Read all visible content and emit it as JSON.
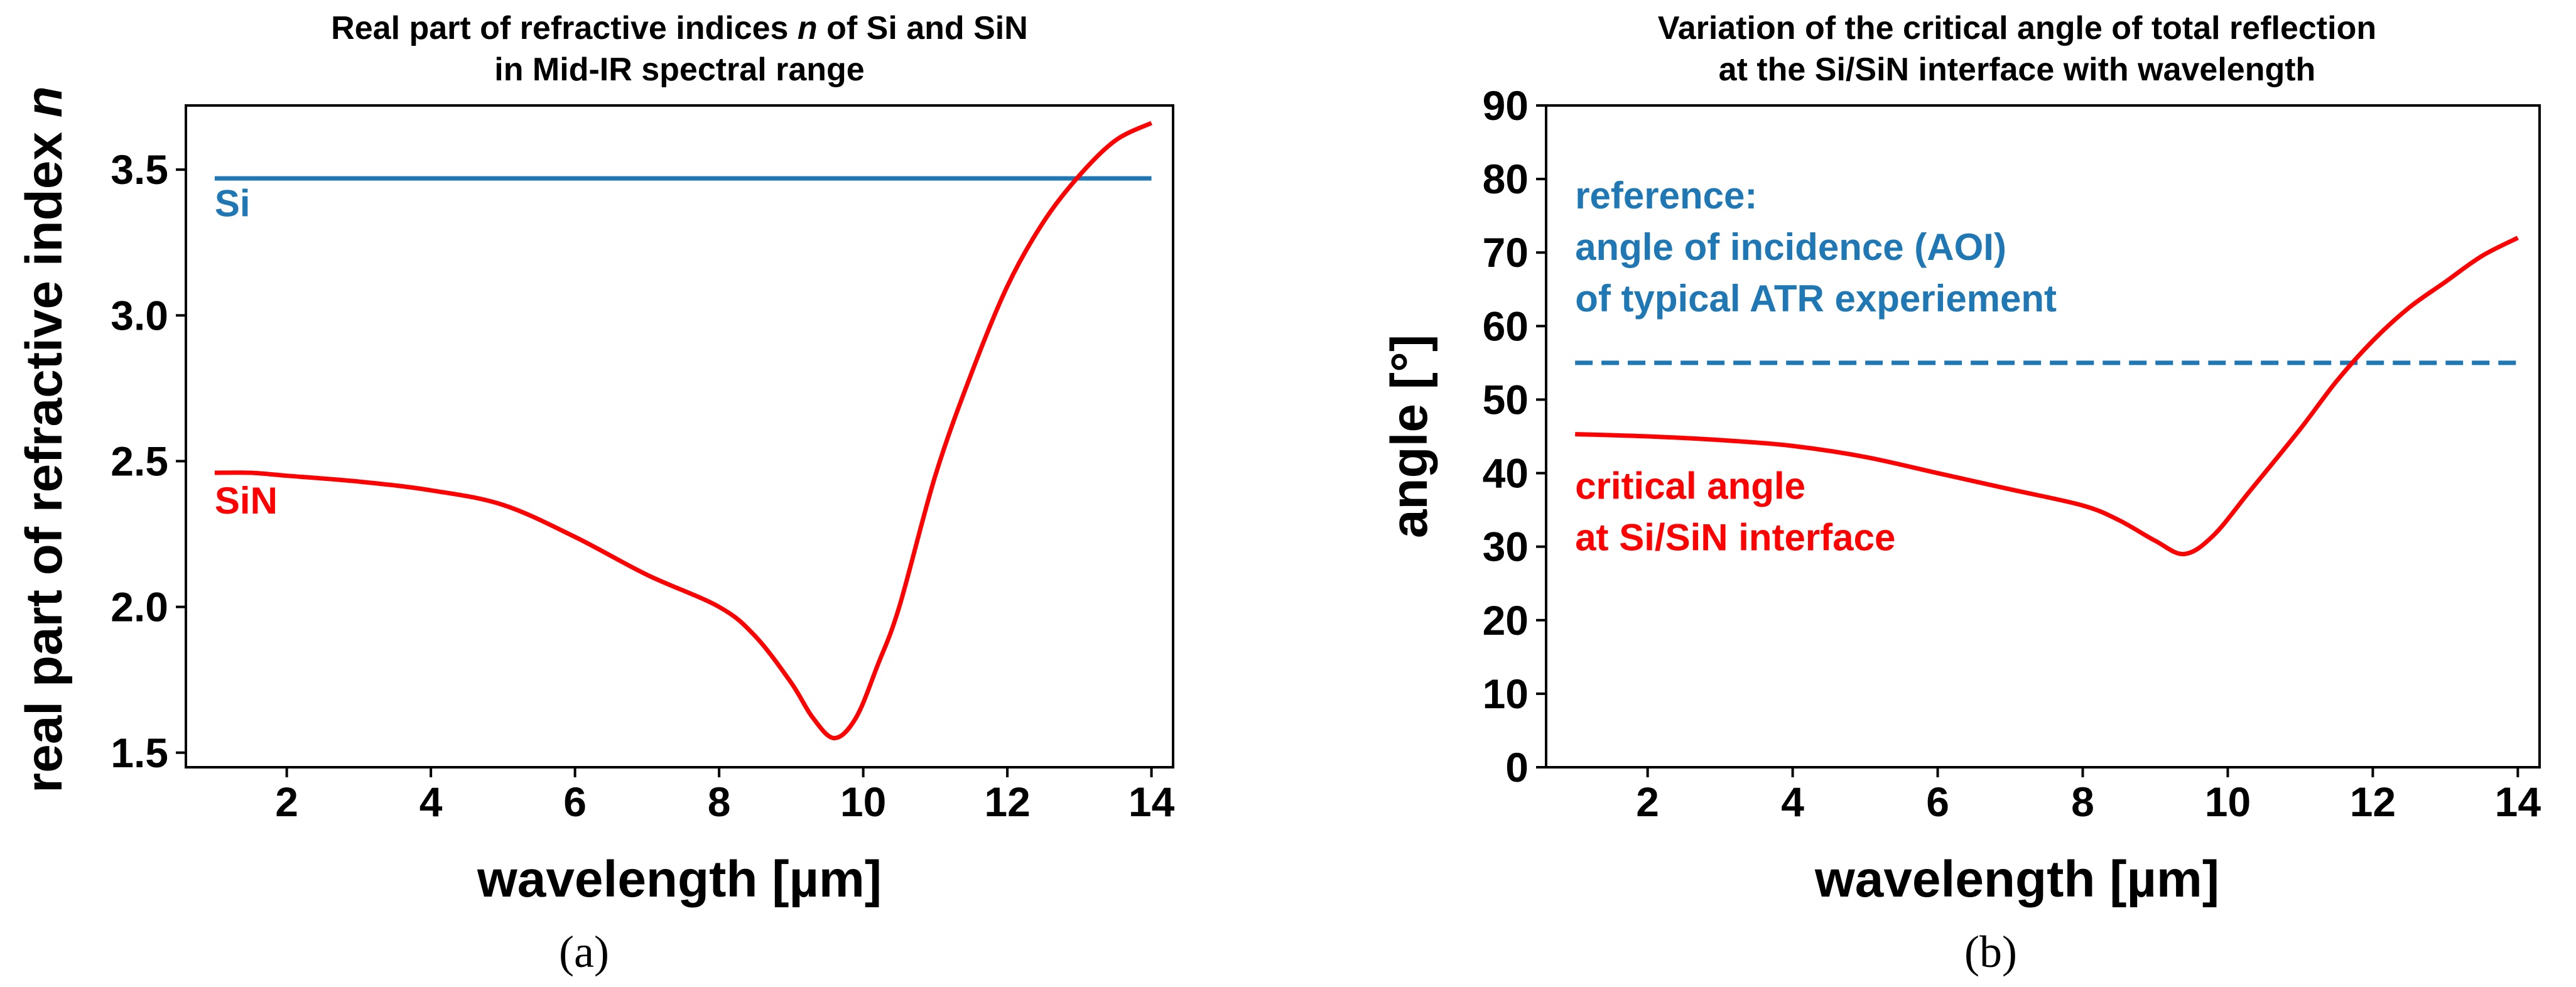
{
  "chart_data": [
    {
      "type": "line",
      "title_line1": "Real part of refractive indices ",
      "title_italic": "n",
      "title_line1_end": " of Si and SiN",
      "title_line2": "in Mid-IR spectral range",
      "xlabel": "wavelength [µm]",
      "ylabel": "real part of refractive index ",
      "ylabel_italic": "n",
      "xlim": [
        0.6,
        14.3
      ],
      "ylim": [
        1.45,
        3.72
      ],
      "xticks": [
        2,
        4,
        6,
        8,
        10,
        12,
        14
      ],
      "yticks": [
        1.5,
        2.0,
        2.5,
        3.0,
        3.5
      ],
      "ytick_labels": [
        "1.5",
        "2.0",
        "2.5",
        "3.0",
        "3.5"
      ],
      "caption": "(a)",
      "series": [
        {
          "name": "Si",
          "color": "#1f77b4",
          "style": "solid",
          "x": [
            1,
            14
          ],
          "y": [
            3.47,
            3.47
          ]
        },
        {
          "name": "SiN",
          "color": "#ff0000",
          "style": "solid",
          "x": [
            1,
            1.5,
            2,
            3,
            4,
            5,
            6,
            7,
            8,
            8.5,
            9,
            9.3,
            9.6,
            9.9,
            10.2,
            10.5,
            11,
            11.5,
            12,
            12.5,
            13,
            13.5,
            14
          ],
          "y": [
            2.46,
            2.46,
            2.45,
            2.43,
            2.4,
            2.35,
            2.24,
            2.11,
            2.0,
            1.9,
            1.74,
            1.62,
            1.55,
            1.62,
            1.8,
            2.0,
            2.45,
            2.8,
            3.1,
            3.32,
            3.48,
            3.6,
            3.66
          ]
        }
      ],
      "annotations": [
        {
          "text": "Si",
          "color": "#1f77b4",
          "x": 1.0,
          "y": 3.34
        },
        {
          "text": "SiN",
          "color": "#ff0000",
          "x": 1.0,
          "y": 2.32
        }
      ]
    },
    {
      "type": "line",
      "title_line1": "Variation of the critical angle of total reflection",
      "title_line2": "at the Si/SiN interface with wavelength",
      "xlabel": "wavelength [µm]",
      "ylabel": "angle [°]",
      "xlim": [
        0.6,
        14.3
      ],
      "ylim": [
        0,
        90
      ],
      "xticks": [
        2,
        4,
        6,
        8,
        10,
        12,
        14
      ],
      "yticks": [
        0,
        10,
        20,
        30,
        40,
        50,
        60,
        70,
        80,
        90
      ],
      "caption": "(b)",
      "series": [
        {
          "name": "reference AOI",
          "color": "#1f77b4",
          "style": "dashed",
          "x": [
            1,
            14
          ],
          "y": [
            55,
            55
          ]
        },
        {
          "name": "critical angle",
          "color": "#ff0000",
          "style": "solid",
          "x": [
            1,
            2,
            3,
            4,
            5,
            6,
            7,
            8,
            8.5,
            9,
            9.4,
            9.8,
            10.3,
            11,
            11.5,
            12,
            12.5,
            13,
            13.5,
            14
          ],
          "y": [
            45.3,
            45.0,
            44.5,
            43.7,
            42.2,
            40.0,
            37.8,
            35.6,
            33.6,
            30.8,
            29.0,
            31.5,
            37.5,
            46.0,
            52.5,
            58.0,
            62.5,
            66.0,
            69.5,
            72.0
          ]
        }
      ],
      "annotations": [
        {
          "text": "reference:",
          "color": "#1f77b4",
          "x": 1.0,
          "y": 76
        },
        {
          "text": "angle of incidence (AOI)",
          "color": "#1f77b4",
          "x": 1.0,
          "y": 69
        },
        {
          "text": "of typical ATR experiement",
          "color": "#1f77b4",
          "x": 1.0,
          "y": 62
        },
        {
          "text": "critical angle",
          "color": "#ff0000",
          "x": 1.0,
          "y": 36.5
        },
        {
          "text": "at Si/SiN interface",
          "color": "#ff0000",
          "x": 1.0,
          "y": 29.5
        }
      ]
    }
  ]
}
